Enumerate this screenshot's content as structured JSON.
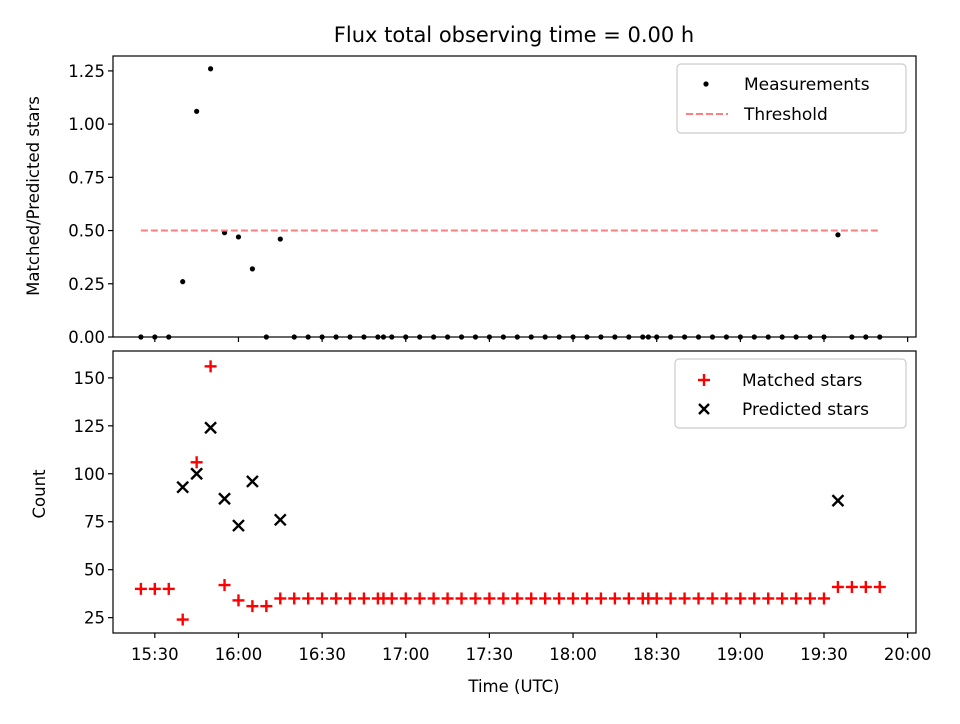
{
  "chart_data": [
    {
      "type": "scatter",
      "title": "Flux total observing time = 0.00 h",
      "xlabel": "",
      "ylabel": "Matched/Predicted stars",
      "xlim": [
        "15:15",
        "20:03"
      ],
      "ylim": [
        0,
        1.32
      ],
      "yticks": [
        0.0,
        0.25,
        0.5,
        0.75,
        1.0,
        1.25
      ],
      "ytick_labels": [
        "0.00",
        "0.25",
        "0.50",
        "0.75",
        "1.00",
        "1.25"
      ],
      "legend_position": "top-right",
      "series": [
        {
          "name": "Measurements",
          "style": "dot",
          "color": "#000000",
          "x": [
            "15:25",
            "15:30",
            "15:35",
            "15:40",
            "15:45",
            "15:50",
            "15:55",
            "16:00",
            "16:05",
            "16:10",
            "16:15",
            "16:20",
            "16:25",
            "16:30",
            "16:35",
            "16:40",
            "16:45",
            "16:50",
            "16:52",
            "16:55",
            "17:00",
            "17:05",
            "17:10",
            "17:15",
            "17:20",
            "17:25",
            "17:30",
            "17:35",
            "17:40",
            "17:45",
            "17:50",
            "17:55",
            "18:00",
            "18:05",
            "18:10",
            "18:15",
            "18:20",
            "18:25",
            "18:27",
            "18:30",
            "18:35",
            "18:40",
            "18:45",
            "18:50",
            "18:55",
            "19:00",
            "19:05",
            "19:10",
            "19:15",
            "19:20",
            "19:25",
            "19:30",
            "19:35",
            "19:40",
            "19:45",
            "19:50"
          ],
          "y": [
            0,
            0,
            0,
            0.26,
            1.06,
            1.26,
            0.49,
            0.47,
            0.32,
            0,
            0.46,
            0,
            0,
            0,
            0,
            0,
            0,
            0,
            0,
            0,
            0,
            0,
            0,
            0,
            0,
            0,
            0,
            0,
            0,
            0,
            0,
            0,
            0,
            0,
            0,
            0,
            0,
            0,
            0,
            0,
            0,
            0,
            0,
            0,
            0,
            0,
            0,
            0,
            0,
            0,
            0,
            0,
            0.48,
            0,
            0,
            0
          ]
        },
        {
          "name": "Threshold",
          "style": "dashed-line",
          "color": "#ff7f7f",
          "x": [
            "15:25",
            "19:50"
          ],
          "y": [
            0.5,
            0.5
          ]
        }
      ]
    },
    {
      "type": "scatter",
      "title": "",
      "xlabel": "Time (UTC)",
      "ylabel": "Count",
      "xlim": [
        "15:15",
        "20:03"
      ],
      "ylim": [
        17,
        164
      ],
      "yticks": [
        25,
        50,
        75,
        100,
        125,
        150
      ],
      "ytick_labels": [
        "25",
        "50",
        "75",
        "100",
        "125",
        "150"
      ],
      "xticks": [
        "15:30",
        "16:00",
        "16:30",
        "17:00",
        "17:30",
        "18:00",
        "18:30",
        "19:00",
        "19:30",
        "20:00"
      ],
      "xtick_labels": [
        "15:30",
        "16:00",
        "16:30",
        "17:00",
        "17:30",
        "18:00",
        "18:30",
        "19:00",
        "19:30",
        "20:00"
      ],
      "legend_position": "top-right",
      "series": [
        {
          "name": "Matched stars",
          "style": "plus",
          "color": "#ff0000",
          "x": [
            "15:25",
            "15:30",
            "15:35",
            "15:40",
            "15:45",
            "15:50",
            "15:55",
            "16:00",
            "16:05",
            "16:10",
            "16:15",
            "16:20",
            "16:25",
            "16:30",
            "16:35",
            "16:40",
            "16:45",
            "16:50",
            "16:52",
            "16:55",
            "17:00",
            "17:05",
            "17:10",
            "17:15",
            "17:20",
            "17:25",
            "17:30",
            "17:35",
            "17:40",
            "17:45",
            "17:50",
            "17:55",
            "18:00",
            "18:05",
            "18:10",
            "18:15",
            "18:20",
            "18:25",
            "18:27",
            "18:30",
            "18:35",
            "18:40",
            "18:45",
            "18:50",
            "18:55",
            "19:00",
            "19:05",
            "19:10",
            "19:15",
            "19:20",
            "19:25",
            "19:30",
            "19:35",
            "19:40",
            "19:45",
            "19:50"
          ],
          "y": [
            40,
            40,
            40,
            24,
            106,
            156,
            42,
            34,
            31,
            31,
            35,
            35,
            35,
            35,
            35,
            35,
            35,
            35,
            35,
            35,
            35,
            35,
            35,
            35,
            35,
            35,
            35,
            35,
            35,
            35,
            35,
            35,
            35,
            35,
            35,
            35,
            35,
            35,
            35,
            35,
            35,
            35,
            35,
            35,
            35,
            35,
            35,
            35,
            35,
            35,
            35,
            35,
            41,
            41,
            41,
            41
          ]
        },
        {
          "name": "Predicted stars",
          "style": "x",
          "color": "#000000",
          "x": [
            "15:40",
            "15:45",
            "15:50",
            "15:55",
            "16:00",
            "16:05",
            "16:15",
            "19:35"
          ],
          "y": [
            93,
            100,
            124,
            87,
            73,
            96,
            76,
            86
          ]
        }
      ]
    }
  ]
}
